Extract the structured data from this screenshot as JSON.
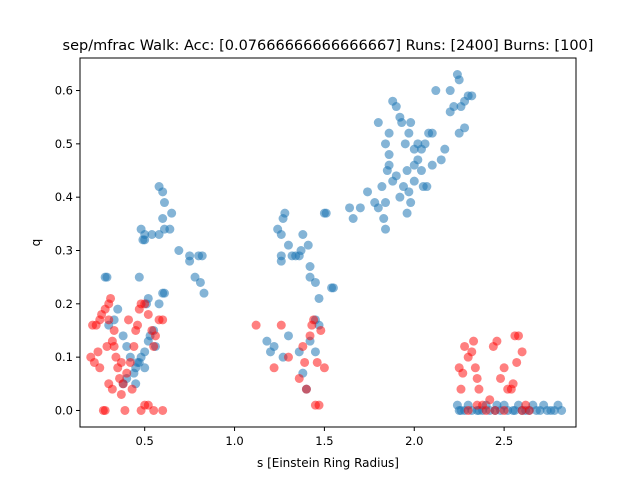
{
  "chart_data": {
    "type": "scatter",
    "title": "sep/mfrac Walk: Acc: [0.07666666666666667] Runs: [2400] Burns: [100]",
    "xlabel": "s [Einstein Ring Radius]",
    "ylabel": "q",
    "xlim": [
      0.14,
      2.9
    ],
    "ylim": [
      -0.031,
      0.661
    ],
    "xticks": [
      0.5,
      1.0,
      1.5,
      2.0,
      2.5
    ],
    "xtick_labels": [
      "0.5",
      "1.0",
      "1.5",
      "2.0",
      "2.5"
    ],
    "yticks": [
      0.0,
      0.1,
      0.2,
      0.3,
      0.4,
      0.5,
      0.6
    ],
    "ytick_labels": [
      "0.0",
      "0.1",
      "0.2",
      "0.3",
      "0.4",
      "0.5",
      "0.6"
    ],
    "grid": false,
    "legend": "none",
    "series": [
      {
        "color": "#1f77b4",
        "alpha": 0.55,
        "points": [
          [
            0.28,
            0.25
          ],
          [
            0.29,
            0.25
          ],
          [
            0.35,
            0.19
          ],
          [
            0.33,
            0.17
          ],
          [
            0.3,
            0.16
          ],
          [
            0.38,
            0.14
          ],
          [
            0.4,
            0.12
          ],
          [
            0.42,
            0.1
          ],
          [
            0.45,
            0.08
          ],
          [
            0.47,
            0.09
          ],
          [
            0.48,
            0.1
          ],
          [
            0.5,
            0.11
          ],
          [
            0.52,
            0.13
          ],
          [
            0.53,
            0.14
          ],
          [
            0.55,
            0.15
          ],
          [
            0.56,
            0.12
          ],
          [
            0.44,
            0.07
          ],
          [
            0.46,
            0.09
          ],
          [
            0.5,
            0.08
          ],
          [
            0.51,
            0.2
          ],
          [
            0.52,
            0.21
          ],
          [
            0.58,
            0.2
          ],
          [
            0.6,
            0.22
          ],
          [
            0.61,
            0.22
          ],
          [
            0.5,
            0.33
          ],
          [
            0.48,
            0.34
          ],
          [
            0.5,
            0.32
          ],
          [
            0.49,
            0.32
          ],
          [
            0.54,
            0.33
          ],
          [
            0.58,
            0.33
          ],
          [
            0.61,
            0.34
          ],
          [
            0.64,
            0.34
          ],
          [
            0.65,
            0.37
          ],
          [
            0.58,
            0.42
          ],
          [
            0.6,
            0.41
          ],
          [
            0.61,
            0.39
          ],
          [
            0.6,
            0.36
          ],
          [
            0.69,
            0.3
          ],
          [
            0.75,
            0.28
          ],
          [
            0.75,
            0.29
          ],
          [
            0.8,
            0.29
          ],
          [
            0.82,
            0.29
          ],
          [
            0.78,
            0.25
          ],
          [
            0.81,
            0.24
          ],
          [
            0.83,
            0.22
          ],
          [
            0.47,
            0.25
          ],
          [
            0.38,
            0.05
          ],
          [
            0.4,
            0.06
          ],
          [
            0.45,
            0.05
          ],
          [
            1.18,
            0.13
          ],
          [
            1.2,
            0.11
          ],
          [
            1.22,
            0.12
          ],
          [
            1.24,
            0.34
          ],
          [
            1.26,
            0.33
          ],
          [
            1.28,
            0.37
          ],
          [
            1.27,
            0.36
          ],
          [
            1.3,
            0.31
          ],
          [
            1.26,
            0.29
          ],
          [
            1.26,
            0.28
          ],
          [
            1.32,
            0.29
          ],
          [
            1.34,
            0.29
          ],
          [
            1.36,
            0.29
          ],
          [
            1.37,
            0.3
          ],
          [
            1.38,
            0.33
          ],
          [
            1.41,
            0.31
          ],
          [
            1.42,
            0.27
          ],
          [
            1.42,
            0.25
          ],
          [
            1.45,
            0.24
          ],
          [
            1.47,
            0.21
          ],
          [
            1.5,
            0.37
          ],
          [
            1.51,
            0.37
          ],
          [
            1.54,
            0.23
          ],
          [
            1.55,
            0.23
          ],
          [
            1.45,
            0.17
          ],
          [
            1.47,
            0.16
          ],
          [
            1.42,
            0.13
          ],
          [
            1.45,
            0.11
          ],
          [
            1.38,
            0.07
          ],
          [
            1.4,
            0.04
          ],
          [
            1.27,
            0.1
          ],
          [
            1.3,
            0.14
          ],
          [
            1.36,
            0.11
          ],
          [
            1.64,
            0.38
          ],
          [
            1.66,
            0.36
          ],
          [
            1.7,
            0.38
          ],
          [
            1.74,
            0.41
          ],
          [
            1.78,
            0.39
          ],
          [
            1.8,
            0.38
          ],
          [
            1.82,
            0.42
          ],
          [
            1.84,
            0.39
          ],
          [
            1.83,
            0.36
          ],
          [
            1.84,
            0.34
          ],
          [
            1.85,
            0.45
          ],
          [
            1.86,
            0.46
          ],
          [
            1.88,
            0.43
          ],
          [
            1.9,
            0.44
          ],
          [
            1.92,
            0.4
          ],
          [
            1.94,
            0.42
          ],
          [
            1.96,
            0.37
          ],
          [
            1.97,
            0.41
          ],
          [
            1.98,
            0.39
          ],
          [
            2.0,
            0.43
          ],
          [
            2.0,
            0.46
          ],
          [
            2.02,
            0.47
          ],
          [
            2.04,
            0.45
          ],
          [
            2.05,
            0.42
          ],
          [
            2.07,
            0.42
          ],
          [
            1.8,
            0.54
          ],
          [
            1.86,
            0.52
          ],
          [
            1.88,
            0.58
          ],
          [
            1.9,
            0.57
          ],
          [
            1.92,
            0.55
          ],
          [
            1.93,
            0.54
          ],
          [
            1.95,
            0.5
          ],
          [
            1.97,
            0.52
          ],
          [
            1.98,
            0.54
          ],
          [
            2.0,
            0.49
          ],
          [
            2.02,
            0.5
          ],
          [
            2.04,
            0.49
          ],
          [
            2.06,
            0.5
          ],
          [
            2.08,
            0.52
          ],
          [
            2.1,
            0.52
          ],
          [
            2.12,
            0.6
          ],
          [
            2.15,
            0.47
          ],
          [
            2.17,
            0.49
          ],
          [
            2.2,
            0.56
          ],
          [
            2.22,
            0.57
          ],
          [
            2.24,
            0.63
          ],
          [
            2.25,
            0.62
          ],
          [
            2.26,
            0.57
          ],
          [
            2.28,
            0.58
          ],
          [
            2.3,
            0.59
          ],
          [
            2.32,
            0.59
          ],
          [
            2.2,
            0.6
          ],
          [
            2.28,
            0.53
          ],
          [
            2.25,
            0.52
          ],
          [
            1.84,
            0.5
          ],
          [
            1.86,
            0.48
          ],
          [
            1.96,
            0.45
          ],
          [
            2.1,
            0.46
          ],
          [
            2.24,
            0.01
          ],
          [
            2.25,
            0.0
          ],
          [
            2.28,
            0.0
          ],
          [
            2.3,
            0.01
          ],
          [
            2.32,
            0.0
          ],
          [
            2.35,
            0.0
          ],
          [
            2.38,
            0.0
          ],
          [
            2.4,
            0.01
          ],
          [
            2.42,
            0.0
          ],
          [
            2.45,
            0.0
          ],
          [
            2.48,
            0.0
          ],
          [
            2.5,
            0.01
          ],
          [
            2.52,
            0.0
          ],
          [
            2.55,
            0.0
          ],
          [
            2.58,
            0.01
          ],
          [
            2.6,
            0.0
          ],
          [
            2.62,
            0.0
          ],
          [
            2.64,
            0.0
          ],
          [
            2.66,
            0.01
          ],
          [
            2.68,
            0.0
          ],
          [
            2.7,
            0.0
          ],
          [
            2.72,
            0.01
          ],
          [
            2.74,
            0.0
          ],
          [
            2.76,
            0.0
          ],
          [
            2.78,
            0.0
          ],
          [
            2.8,
            0.01
          ],
          [
            2.82,
            0.0
          ],
          [
            2.56,
            0.0
          ],
          [
            2.46,
            0.01
          ],
          [
            2.36,
            0.0
          ],
          [
            2.26,
            0.0
          ]
        ]
      },
      {
        "color": "#ff0000",
        "alpha": 0.5,
        "points": [
          [
            0.2,
            0.1
          ],
          [
            0.22,
            0.09
          ],
          [
            0.24,
            0.11
          ],
          [
            0.25,
            0.08
          ],
          [
            0.21,
            0.16
          ],
          [
            0.23,
            0.16
          ],
          [
            0.25,
            0.17
          ],
          [
            0.26,
            0.18
          ],
          [
            0.28,
            0.19
          ],
          [
            0.3,
            0.2
          ],
          [
            0.31,
            0.21
          ],
          [
            0.3,
            0.17
          ],
          [
            0.32,
            0.13
          ],
          [
            0.33,
            0.12
          ],
          [
            0.34,
            0.1
          ],
          [
            0.35,
            0.08
          ],
          [
            0.36,
            0.06
          ],
          [
            0.38,
            0.05
          ],
          [
            0.4,
            0.07
          ],
          [
            0.42,
            0.09
          ],
          [
            0.44,
            0.12
          ],
          [
            0.45,
            0.15
          ],
          [
            0.46,
            0.16
          ],
          [
            0.47,
            0.19
          ],
          [
            0.48,
            0.2
          ],
          [
            0.5,
            0.2
          ],
          [
            0.52,
            0.18
          ],
          [
            0.54,
            0.15
          ],
          [
            0.55,
            0.12
          ],
          [
            0.56,
            0.14
          ],
          [
            0.58,
            0.17
          ],
          [
            0.6,
            0.17
          ],
          [
            0.27,
            0.0
          ],
          [
            0.28,
            0.0
          ],
          [
            0.3,
            0.05
          ],
          [
            0.32,
            0.04
          ],
          [
            0.37,
            0.03
          ],
          [
            0.39,
            0.0
          ],
          [
            0.48,
            0.0
          ],
          [
            0.5,
            0.01
          ],
          [
            0.52,
            0.01
          ],
          [
            0.55,
            0.0
          ],
          [
            0.6,
            0.0
          ],
          [
            0.29,
            0.12
          ],
          [
            0.33,
            0.15
          ],
          [
            0.37,
            0.09
          ],
          [
            0.41,
            0.17
          ],
          [
            0.43,
            0.04
          ],
          [
            1.12,
            0.16
          ],
          [
            1.22,
            0.08
          ],
          [
            1.26,
            0.16
          ],
          [
            1.3,
            0.1
          ],
          [
            1.36,
            0.06
          ],
          [
            1.38,
            0.12
          ],
          [
            1.39,
            0.09
          ],
          [
            1.4,
            0.04
          ],
          [
            1.42,
            0.14
          ],
          [
            1.43,
            0.16
          ],
          [
            1.44,
            0.17
          ],
          [
            1.45,
            0.01
          ],
          [
            1.46,
            0.09
          ],
          [
            1.48,
            0.15
          ],
          [
            1.5,
            0.08
          ],
          [
            1.47,
            0.01
          ],
          [
            2.25,
            0.08
          ],
          [
            2.26,
            0.04
          ],
          [
            2.27,
            0.07
          ],
          [
            2.28,
            0.12
          ],
          [
            2.3,
            0.1
          ],
          [
            2.32,
            0.11
          ],
          [
            2.33,
            0.13
          ],
          [
            2.34,
            0.08
          ],
          [
            2.35,
            0.06
          ],
          [
            2.36,
            0.04
          ],
          [
            2.38,
            0.01
          ],
          [
            2.4,
            0.0
          ],
          [
            2.42,
            0.02
          ],
          [
            2.44,
            0.12
          ],
          [
            2.46,
            0.13
          ],
          [
            2.48,
            0.06
          ],
          [
            2.5,
            0.08
          ],
          [
            2.52,
            0.04
          ],
          [
            2.54,
            0.04
          ],
          [
            2.55,
            0.05
          ],
          [
            2.56,
            0.14
          ],
          [
            2.58,
            0.14
          ],
          [
            2.6,
            0.11
          ],
          [
            2.6,
            0.0
          ],
          [
            2.62,
            0.01
          ],
          [
            2.64,
            0.0
          ],
          [
            2.3,
            0.0
          ],
          [
            2.35,
            0.01
          ],
          [
            2.45,
            0.0
          ],
          [
            2.5,
            0.0
          ],
          [
            2.57,
            0.09
          ]
        ]
      }
    ]
  }
}
